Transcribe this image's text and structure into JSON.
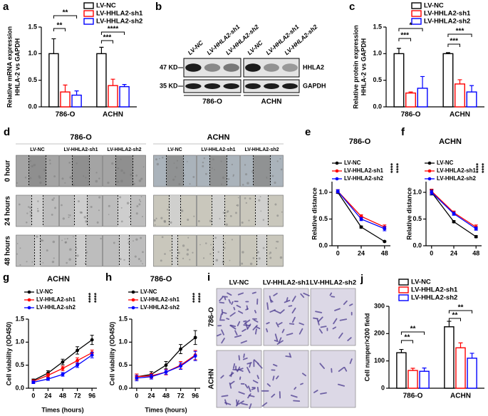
{
  "chart_data": [
    {
      "type": "bar",
      "label": "a",
      "y_label": [
        "Relative mRNA expression",
        "HHLA-2 vs GAPDH"
      ],
      "categories": [
        "786-O",
        "ACHN"
      ],
      "series": [
        {
          "name": "LV-NC",
          "color": "#000000",
          "values": [
            1.0,
            1.0
          ],
          "errors": [
            0.28,
            0.12
          ]
        },
        {
          "name": "LV-HHLA2-sh1",
          "color": "#ff0000",
          "values": [
            0.28,
            0.4
          ],
          "errors": [
            0.13,
            0.12
          ]
        },
        {
          "name": "LV-HHLA2-sh2",
          "color": "#0000ff",
          "values": [
            0.22,
            0.38
          ],
          "errors": [
            0.08,
            0.04
          ]
        }
      ],
      "ylim": [
        0,
        1.5
      ],
      "yticks": [
        {
          "value": 0,
          "label": "0.0"
        },
        {
          "value": 0.5,
          "label": "0.5"
        },
        {
          "value": 1,
          "label": "1.0"
        },
        {
          "value": 1.5,
          "label": "1.5"
        }
      ],
      "significance": [
        "**",
        "**",
        "****",
        "***"
      ]
    },
    {
      "type": "bar",
      "label": "c",
      "y_label": [
        "Relative protein expression",
        "HHLA-2 vs GAPDH"
      ],
      "categories": [
        "786-O",
        "ACHN"
      ],
      "series": [
        {
          "name": "LV-NC",
          "color": "#000000",
          "values": [
            1.0,
            1.0
          ],
          "errors": [
            0.1,
            0.02
          ]
        },
        {
          "name": "LV-HHLA2-sh1",
          "color": "#ff0000",
          "values": [
            0.26,
            0.43
          ],
          "errors": [
            0.02,
            0.08
          ]
        },
        {
          "name": "LV-HHLA2-sh2",
          "color": "#0000ff",
          "values": [
            0.35,
            0.28
          ],
          "errors": [
            0.22,
            0.12
          ]
        }
      ],
      "ylim": [
        0,
        1.5
      ],
      "yticks": [
        {
          "value": 0,
          "label": "0.0"
        },
        {
          "value": 0.5,
          "label": "0.5"
        },
        {
          "value": 1,
          "label": "1.0"
        },
        {
          "value": 1.5,
          "label": "1.5"
        }
      ],
      "significance": [
        "***",
        "*",
        "***",
        "***"
      ]
    },
    {
      "type": "line",
      "label": "e",
      "title": "786-O",
      "y_label": [
        "Relative distance"
      ],
      "x": [
        0,
        24,
        48
      ],
      "xlim": [
        -6,
        54
      ],
      "xticks": [
        0,
        24,
        48
      ],
      "series": [
        {
          "name": "LV-NC",
          "color": "#000000",
          "values": [
            1.0,
            0.35,
            0.08
          ],
          "errors": [
            0.02,
            0.02,
            0.01
          ]
        },
        {
          "name": "LV-HHLA2-sh1",
          "color": "#ff0000",
          "values": [
            1.02,
            0.55,
            0.35
          ],
          "errors": [
            0.03,
            0.03,
            0.04
          ]
        },
        {
          "name": "LV-HHLA2-sh2",
          "color": "#0000ff",
          "values": [
            1.02,
            0.5,
            0.32
          ],
          "errors": [
            0.03,
            0.03,
            0.04
          ]
        }
      ],
      "ylim": [
        0,
        1.2
      ],
      "yticks": [
        {
          "value": 0,
          "label": "0.0"
        },
        {
          "value": 0.5,
          "label": "0.5"
        },
        {
          "value": 1,
          "label": "1.0"
        }
      ],
      "significance": [
        "****",
        "****"
      ]
    },
    {
      "type": "line",
      "label": "f",
      "title": "ACHN",
      "y_label": [
        "Relative distance"
      ],
      "x": [
        0,
        24,
        48
      ],
      "xlim": [
        -6,
        54
      ],
      "xticks": [
        0,
        24,
        48
      ],
      "series": [
        {
          "name": "LV-NC",
          "color": "#000000",
          "values": [
            1.0,
            0.45,
            0.17
          ],
          "errors": [
            0.05,
            0.02,
            0.02
          ]
        },
        {
          "name": "LV-HHLA2-sh1",
          "color": "#ff0000",
          "values": [
            1.02,
            0.62,
            0.35
          ],
          "errors": [
            0.04,
            0.03,
            0.04
          ]
        },
        {
          "name": "LV-HHLA2-sh2",
          "color": "#0000ff",
          "values": [
            1.0,
            0.6,
            0.32
          ],
          "errors": [
            0.04,
            0.03,
            0.03
          ]
        }
      ],
      "ylim": [
        0,
        1.2
      ],
      "yticks": [
        {
          "value": 0,
          "label": "0.0"
        },
        {
          "value": 0.5,
          "label": "0.5"
        },
        {
          "value": 1,
          "label": "1.0"
        }
      ],
      "significance": [
        "****",
        "****"
      ]
    },
    {
      "type": "line",
      "label": "g",
      "title": "ACHN",
      "y_label": [
        "Cell viability (OD450)"
      ],
      "x_label": "Times (hours)",
      "x": [
        0,
        24,
        48,
        72,
        96
      ],
      "xlim": [
        -8,
        104
      ],
      "xticks": [
        0,
        24,
        48,
        72,
        96
      ],
      "series": [
        {
          "name": "LV-NC",
          "color": "#000000",
          "values": [
            0.17,
            0.33,
            0.57,
            0.82,
            1.05
          ],
          "errors": [
            0.03,
            0.05,
            0.06,
            0.08,
            0.1
          ]
        },
        {
          "name": "LV-HHLA2-sh1",
          "color": "#ff0000",
          "values": [
            0.15,
            0.28,
            0.43,
            0.6,
            0.77
          ],
          "errors": [
            0.03,
            0.04,
            0.05,
            0.06,
            0.06
          ]
        },
        {
          "name": "LV-HHLA2-sh2",
          "color": "#0000ff",
          "values": [
            0.13,
            0.2,
            0.3,
            0.5,
            0.72
          ],
          "errors": [
            0.03,
            0.03,
            0.04,
            0.05,
            0.06
          ]
        }
      ],
      "ylim": [
        0,
        1.5
      ],
      "yticks": [
        {
          "value": 0,
          "label": "0.0"
        },
        {
          "value": 0.5,
          "label": "0.5"
        },
        {
          "value": 1,
          "label": "1.0"
        },
        {
          "value": 1.5,
          "label": "1.5"
        }
      ],
      "significance": [
        "****",
        "****"
      ]
    },
    {
      "type": "line",
      "label": "h",
      "title": "786-O",
      "y_label": [
        "Cell viability (OD450)"
      ],
      "x_label": "Times (hours)",
      "x": [
        0,
        24,
        48,
        72,
        96
      ],
      "xlim": [
        -8,
        104
      ],
      "xticks": [
        0,
        24,
        48,
        72,
        96
      ],
      "series": [
        {
          "name": "LV-NC",
          "color": "#000000",
          "values": [
            0.25,
            0.3,
            0.5,
            0.85,
            1.1
          ],
          "errors": [
            0.06,
            0.06,
            0.08,
            0.1,
            0.15
          ]
        },
        {
          "name": "LV-HHLA2-sh1",
          "color": "#ff0000",
          "values": [
            0.25,
            0.27,
            0.35,
            0.5,
            0.72
          ],
          "errors": [
            0.06,
            0.05,
            0.06,
            0.08,
            0.1
          ]
        },
        {
          "name": "LV-HHLA2-sh2",
          "color": "#0000ff",
          "values": [
            0.22,
            0.25,
            0.35,
            0.48,
            0.7
          ],
          "errors": [
            0.06,
            0.05,
            0.05,
            0.07,
            0.1
          ]
        }
      ],
      "ylim": [
        0,
        1.5
      ],
      "yticks": [
        {
          "value": 0,
          "label": "0.0"
        },
        {
          "value": 0.5,
          "label": "0.5"
        },
        {
          "value": 1,
          "label": "1.0"
        },
        {
          "value": 1.5,
          "label": "1.5"
        }
      ],
      "significance": [
        "****",
        "****"
      ]
    },
    {
      "type": "bar",
      "label": "j",
      "y_label": [
        "Cell numper/×200 field"
      ],
      "categories": [
        "786-O",
        "ACHN"
      ],
      "series": [
        {
          "name": "LV-NC",
          "color": "#000000",
          "values": [
            130,
            225
          ],
          "errors": [
            12,
            20
          ]
        },
        {
          "name": "LV-HHLA2-sh1",
          "color": "#ff0000",
          "values": [
            65,
            148
          ],
          "errors": [
            8,
            18
          ]
        },
        {
          "name": "LV-HHLA2-sh2",
          "color": "#0000ff",
          "values": [
            62,
            110
          ],
          "errors": [
            12,
            18
          ]
        }
      ],
      "ylim": [
        0,
        300
      ],
      "yticks": [
        0,
        100,
        200,
        300
      ],
      "significance": [
        "**",
        "**",
        "**",
        "**"
      ]
    }
  ],
  "blot": {
    "label": "b",
    "markers": [
      "47 KD",
      "35 KD"
    ],
    "proteins": [
      "HHLA2",
      "GAPDH"
    ],
    "groups": [
      {
        "name": "786-O",
        "lanes": [
          {
            "text": "LV-NC",
            "color": "#000000"
          },
          {
            "text": "LV-HHLA2-sh1",
            "color": "#ff0000"
          },
          {
            "text": "LV-HHLA2-sh2",
            "color": "#0000ff"
          }
        ]
      },
      {
        "name": "ACHN",
        "lanes": [
          {
            "text": "LV-NC",
            "color": "#000000"
          },
          {
            "text": "LV-HHLA2-sh1",
            "color": "#ff0000"
          },
          {
            "text": "LV-HHLA2-sh2",
            "color": "#0000ff"
          }
        ]
      }
    ]
  },
  "scratch": {
    "label": "d",
    "rows": [
      "0 hour",
      "24 hours",
      "48 hours"
    ],
    "groups": [
      {
        "name": "786-O",
        "lanes": [
          "LV-NC",
          "LV-HHLA2-sh1",
          "LV-HHLA2-sh2"
        ]
      },
      {
        "name": "ACHN",
        "lanes": [
          "LV-NC",
          "LV-HHLA2-sh1",
          "LV-HHLA2-sh2"
        ]
      }
    ]
  },
  "transwell": {
    "label": "i",
    "lanes": [
      "LV-NC",
      "LV-HHLA2-sh1",
      "LV-HHLA2-sh2"
    ],
    "rows": [
      "786-O",
      "ACHN"
    ]
  }
}
